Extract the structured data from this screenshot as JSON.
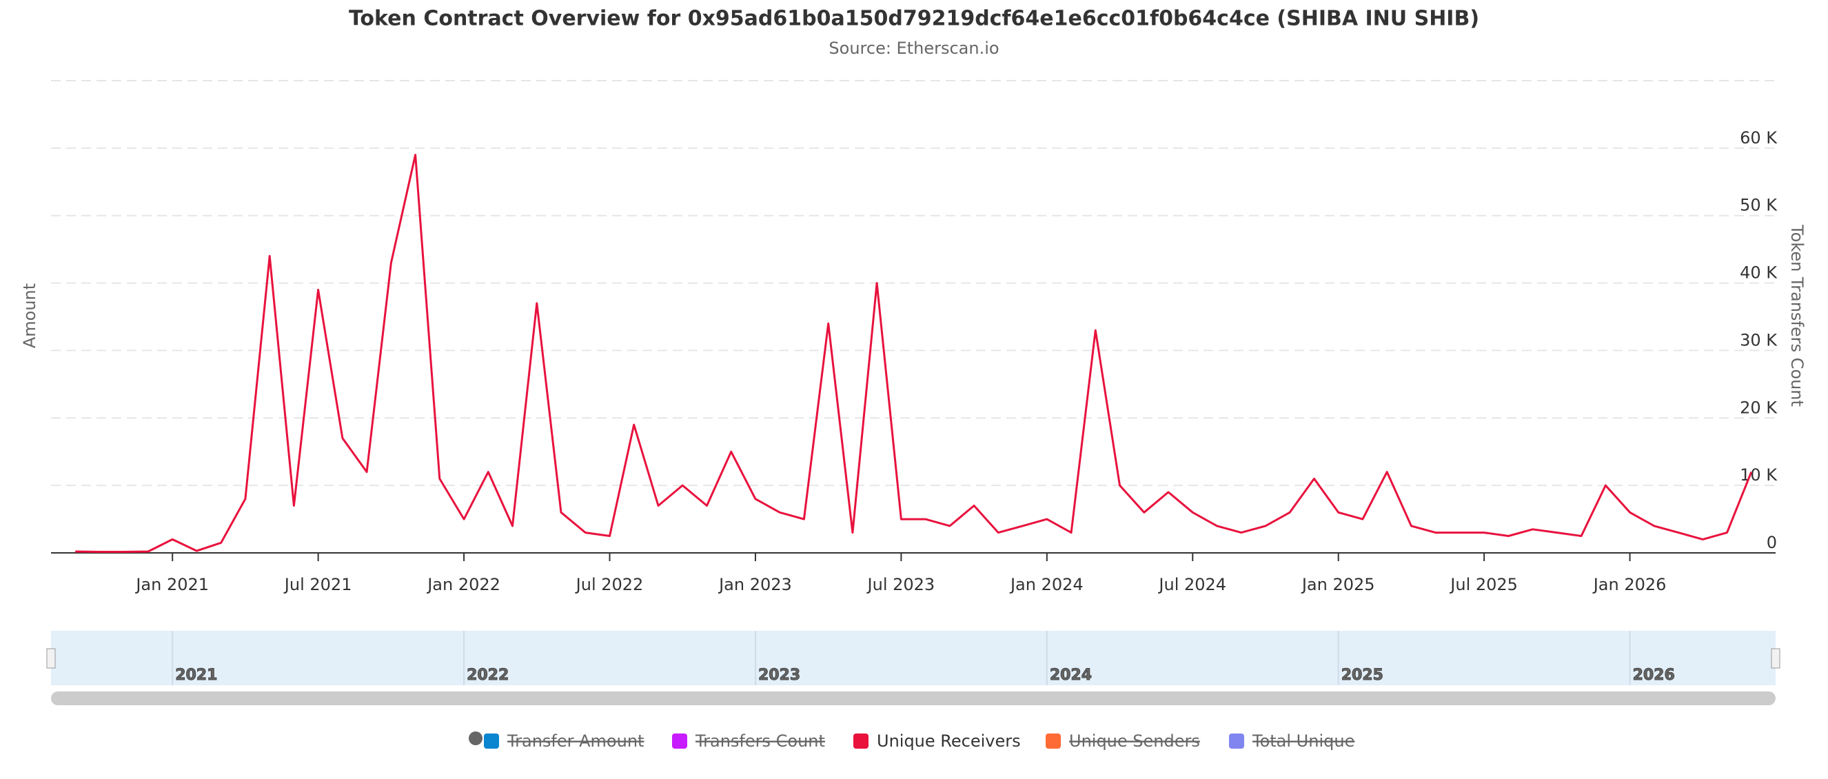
{
  "chart_data": {
    "type": "line",
    "title": "Token Contract Overview for 0x95ad61b0a150d79219dcf64e1e6cc01f0b64c4ce (SHIBA INU SHIB)",
    "subtitle": "Source: Etherscan.io",
    "y_left_label": "Amount",
    "y_label": "Token Transfers Count",
    "x": [
      "2020-09",
      "2020-10",
      "2020-11",
      "2020-12",
      "2021-01",
      "2021-02",
      "2021-03",
      "2021-04",
      "2021-05",
      "2021-06",
      "2021-07",
      "2021-08",
      "2021-09",
      "2021-10",
      "2021-11",
      "2021-12",
      "2022-01",
      "2022-02",
      "2022-03",
      "2022-04",
      "2022-05",
      "2022-06",
      "2022-07",
      "2022-08",
      "2022-09",
      "2022-10",
      "2022-11",
      "2022-12",
      "2023-01",
      "2023-02",
      "2023-03",
      "2023-04",
      "2023-05",
      "2023-06",
      "2023-07",
      "2023-08",
      "2023-09",
      "2023-10",
      "2023-11",
      "2023-12",
      "2024-01",
      "2024-02",
      "2024-03",
      "2024-04",
      "2024-05",
      "2024-06",
      "2024-07",
      "2024-08",
      "2024-09",
      "2024-10",
      "2024-11",
      "2024-12",
      "2025-01",
      "2025-02",
      "2025-03",
      "2025-04",
      "2025-05",
      "2025-06",
      "2025-07",
      "2025-08",
      "2025-09",
      "2025-10",
      "2025-11",
      "2025-12",
      "2026-01",
      "2026-02",
      "2026-03",
      "2026-04",
      "2026-05",
      "2026-06"
    ],
    "series": [
      {
        "name": "Transfer Amount",
        "color": "#0a86d0",
        "visible": false
      },
      {
        "name": "Transfers Count",
        "color": "#c81bff",
        "visible": false
      },
      {
        "name": "Unique Receivers",
        "color": "#e8123d",
        "visible": true,
        "values": [
          200,
          150,
          150,
          200,
          2000,
          300,
          1500,
          8000,
          44000,
          7000,
          39000,
          17000,
          12000,
          43000,
          59000,
          11000,
          5000,
          12000,
          4000,
          37000,
          6000,
          3000,
          2500,
          19000,
          7000,
          10000,
          7000,
          15000,
          8000,
          6000,
          5000,
          34000,
          3000,
          40000,
          5000,
          5000,
          4000,
          7000,
          3000,
          4000,
          5000,
          3000,
          33000,
          10000,
          6000,
          9000,
          6000,
          4000,
          3000,
          4000,
          6000,
          11000,
          6000,
          5000,
          12000,
          4000,
          3000,
          3000,
          3000,
          2500,
          3500,
          3000,
          2500,
          10000,
          6000,
          4000,
          3000,
          2000,
          3000,
          12000
        ]
      },
      {
        "name": "Unique Senders",
        "color": "#ff6b35",
        "visible": false
      },
      {
        "name": "Total Unique",
        "color": "#8085f0",
        "visible": false
      }
    ],
    "xlim": [
      "2020-08",
      "2026-07"
    ],
    "xticks": [
      {
        "value": "2021-01",
        "label": "Jan 2021"
      },
      {
        "value": "2021-07",
        "label": "Jul 2021"
      },
      {
        "value": "2022-01",
        "label": "Jan 2022"
      },
      {
        "value": "2022-07",
        "label": "Jul 2022"
      },
      {
        "value": "2023-01",
        "label": "Jan 2023"
      },
      {
        "value": "2023-07",
        "label": "Jul 2023"
      },
      {
        "value": "2024-01",
        "label": "Jan 2024"
      },
      {
        "value": "2024-07",
        "label": "Jul 2024"
      },
      {
        "value": "2025-01",
        "label": "Jan 2025"
      },
      {
        "value": "2025-07",
        "label": "Jul 2025"
      },
      {
        "value": "2026-01",
        "label": "Jan 2026"
      }
    ],
    "ylim": [
      0,
      70000
    ],
    "yticks": [
      0,
      {
        "value": 10000,
        "label": "10 K"
      },
      {
        "value": 20000,
        "label": "20 K"
      },
      {
        "value": 30000,
        "label": "30 K"
      },
      {
        "value": 40000,
        "label": "40 K"
      },
      {
        "value": 50000,
        "label": "50 K"
      },
      {
        "value": 60000,
        "label": "60 K"
      }
    ],
    "grid": true,
    "navigator_ticks": [
      {
        "value": "2021-01",
        "label": "2021"
      },
      {
        "value": "2022-01",
        "label": "2022"
      },
      {
        "value": "2023-01",
        "label": "2023"
      },
      {
        "value": "2024-01",
        "label": "2024"
      },
      {
        "value": "2025-01",
        "label": "2025"
      },
      {
        "value": "2026-01",
        "label": "2026"
      }
    ]
  }
}
